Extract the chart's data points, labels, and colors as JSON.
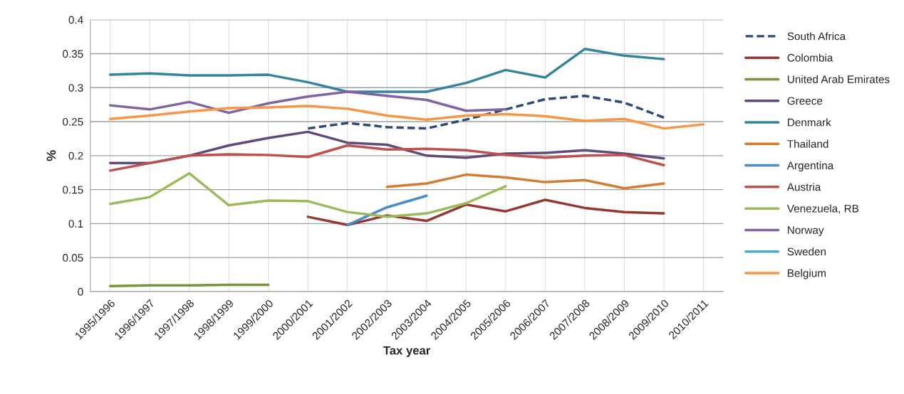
{
  "chart_data": {
    "type": "line",
    "xlabel": "Tax year",
    "ylabel": "%",
    "categories": [
      "1995/1996",
      "1996/1997",
      "1997/1998",
      "1998/1999",
      "1999/2000",
      "2000/2001",
      "2001/2002",
      "2002/2003",
      "2003/2004",
      "2004/2005",
      "2005/2006",
      "2006/2007",
      "2007/2008",
      "2008/2009",
      "2009/2010",
      "2010/2011"
    ],
    "ylim": [
      0,
      0.4
    ],
    "yticks": [
      0,
      0.05,
      0.1,
      0.15,
      0.2,
      0.25,
      0.3,
      0.35,
      0.4
    ],
    "grid": true,
    "legend": "right",
    "marker": "none",
    "series": [
      {
        "name": "South Africa",
        "color": "#2e4a7a",
        "line_style": "dashed",
        "values": [
          null,
          null,
          null,
          null,
          null,
          0.24,
          0.248,
          0.242,
          0.24,
          0.253,
          0.268,
          0.283,
          0.288,
          0.278,
          0.256,
          null
        ]
      },
      {
        "name": "Colombia",
        "color": "#953735",
        "values": [
          null,
          null,
          null,
          null,
          null,
          0.11,
          0.098,
          0.112,
          0.104,
          0.128,
          0.118,
          0.135,
          0.123,
          0.117,
          0.115,
          null
        ]
      },
      {
        "name": "United Arab Emirates",
        "color": "#77933c",
        "values": [
          0.008,
          0.009,
          0.009,
          0.01,
          0.01,
          null,
          null,
          null,
          null,
          null,
          null,
          null,
          null,
          null,
          null,
          null
        ]
      },
      {
        "name": "Greece",
        "color": "#604a7b",
        "values": [
          0.189,
          0.189,
          0.2,
          0.215,
          0.226,
          0.235,
          0.219,
          0.216,
          0.2,
          0.197,
          0.203,
          0.204,
          0.208,
          0.203,
          0.196,
          null
        ]
      },
      {
        "name": "Denmark",
        "color": "#31859c",
        "values": [
          0.319,
          0.321,
          0.318,
          0.318,
          0.319,
          0.308,
          0.294,
          0.294,
          0.294,
          0.307,
          0.326,
          0.315,
          0.357,
          0.347,
          0.342,
          null
        ]
      },
      {
        "name": "Thailand",
        "color": "#d07f32",
        "values": [
          null,
          null,
          null,
          null,
          null,
          null,
          null,
          0.154,
          0.159,
          0.172,
          0.168,
          0.161,
          0.164,
          0.152,
          0.159,
          null
        ]
      },
      {
        "name": "Argentina",
        "color": "#4a8cc8",
        "values": [
          null,
          null,
          null,
          null,
          null,
          null,
          0.098,
          0.124,
          0.141,
          null,
          null,
          null,
          null,
          null,
          null,
          null
        ]
      },
      {
        "name": "Austria",
        "color": "#c0504d",
        "values": [
          0.178,
          0.189,
          0.2,
          0.202,
          0.201,
          0.198,
          0.215,
          0.209,
          0.21,
          0.208,
          0.201,
          0.197,
          0.2,
          0.201,
          0.186,
          null
        ]
      },
      {
        "name": "Venezuela, RB",
        "color": "#9bbb59",
        "values": [
          0.129,
          0.139,
          0.174,
          0.127,
          0.134,
          0.133,
          0.117,
          0.11,
          0.115,
          0.13,
          0.155,
          null,
          null,
          null,
          null,
          null
        ]
      },
      {
        "name": "Norway",
        "color": "#8064a2",
        "values": [
          0.274,
          0.268,
          0.279,
          0.263,
          0.277,
          0.287,
          0.294,
          0.288,
          0.282,
          0.266,
          0.268,
          null,
          null,
          null,
          null,
          null
        ]
      },
      {
        "name": "Sweden",
        "color": "#4bacc6",
        "values": [
          null,
          null,
          null,
          null,
          null,
          null,
          null,
          null,
          null,
          null,
          null,
          null,
          null,
          null,
          null,
          null
        ]
      },
      {
        "name": "Belgium",
        "color": "#f79646",
        "values": [
          0.254,
          0.259,
          0.265,
          0.27,
          0.271,
          0.273,
          0.269,
          0.259,
          0.253,
          0.259,
          0.261,
          0.258,
          0.251,
          0.254,
          0.24,
          0.246
        ]
      }
    ]
  }
}
